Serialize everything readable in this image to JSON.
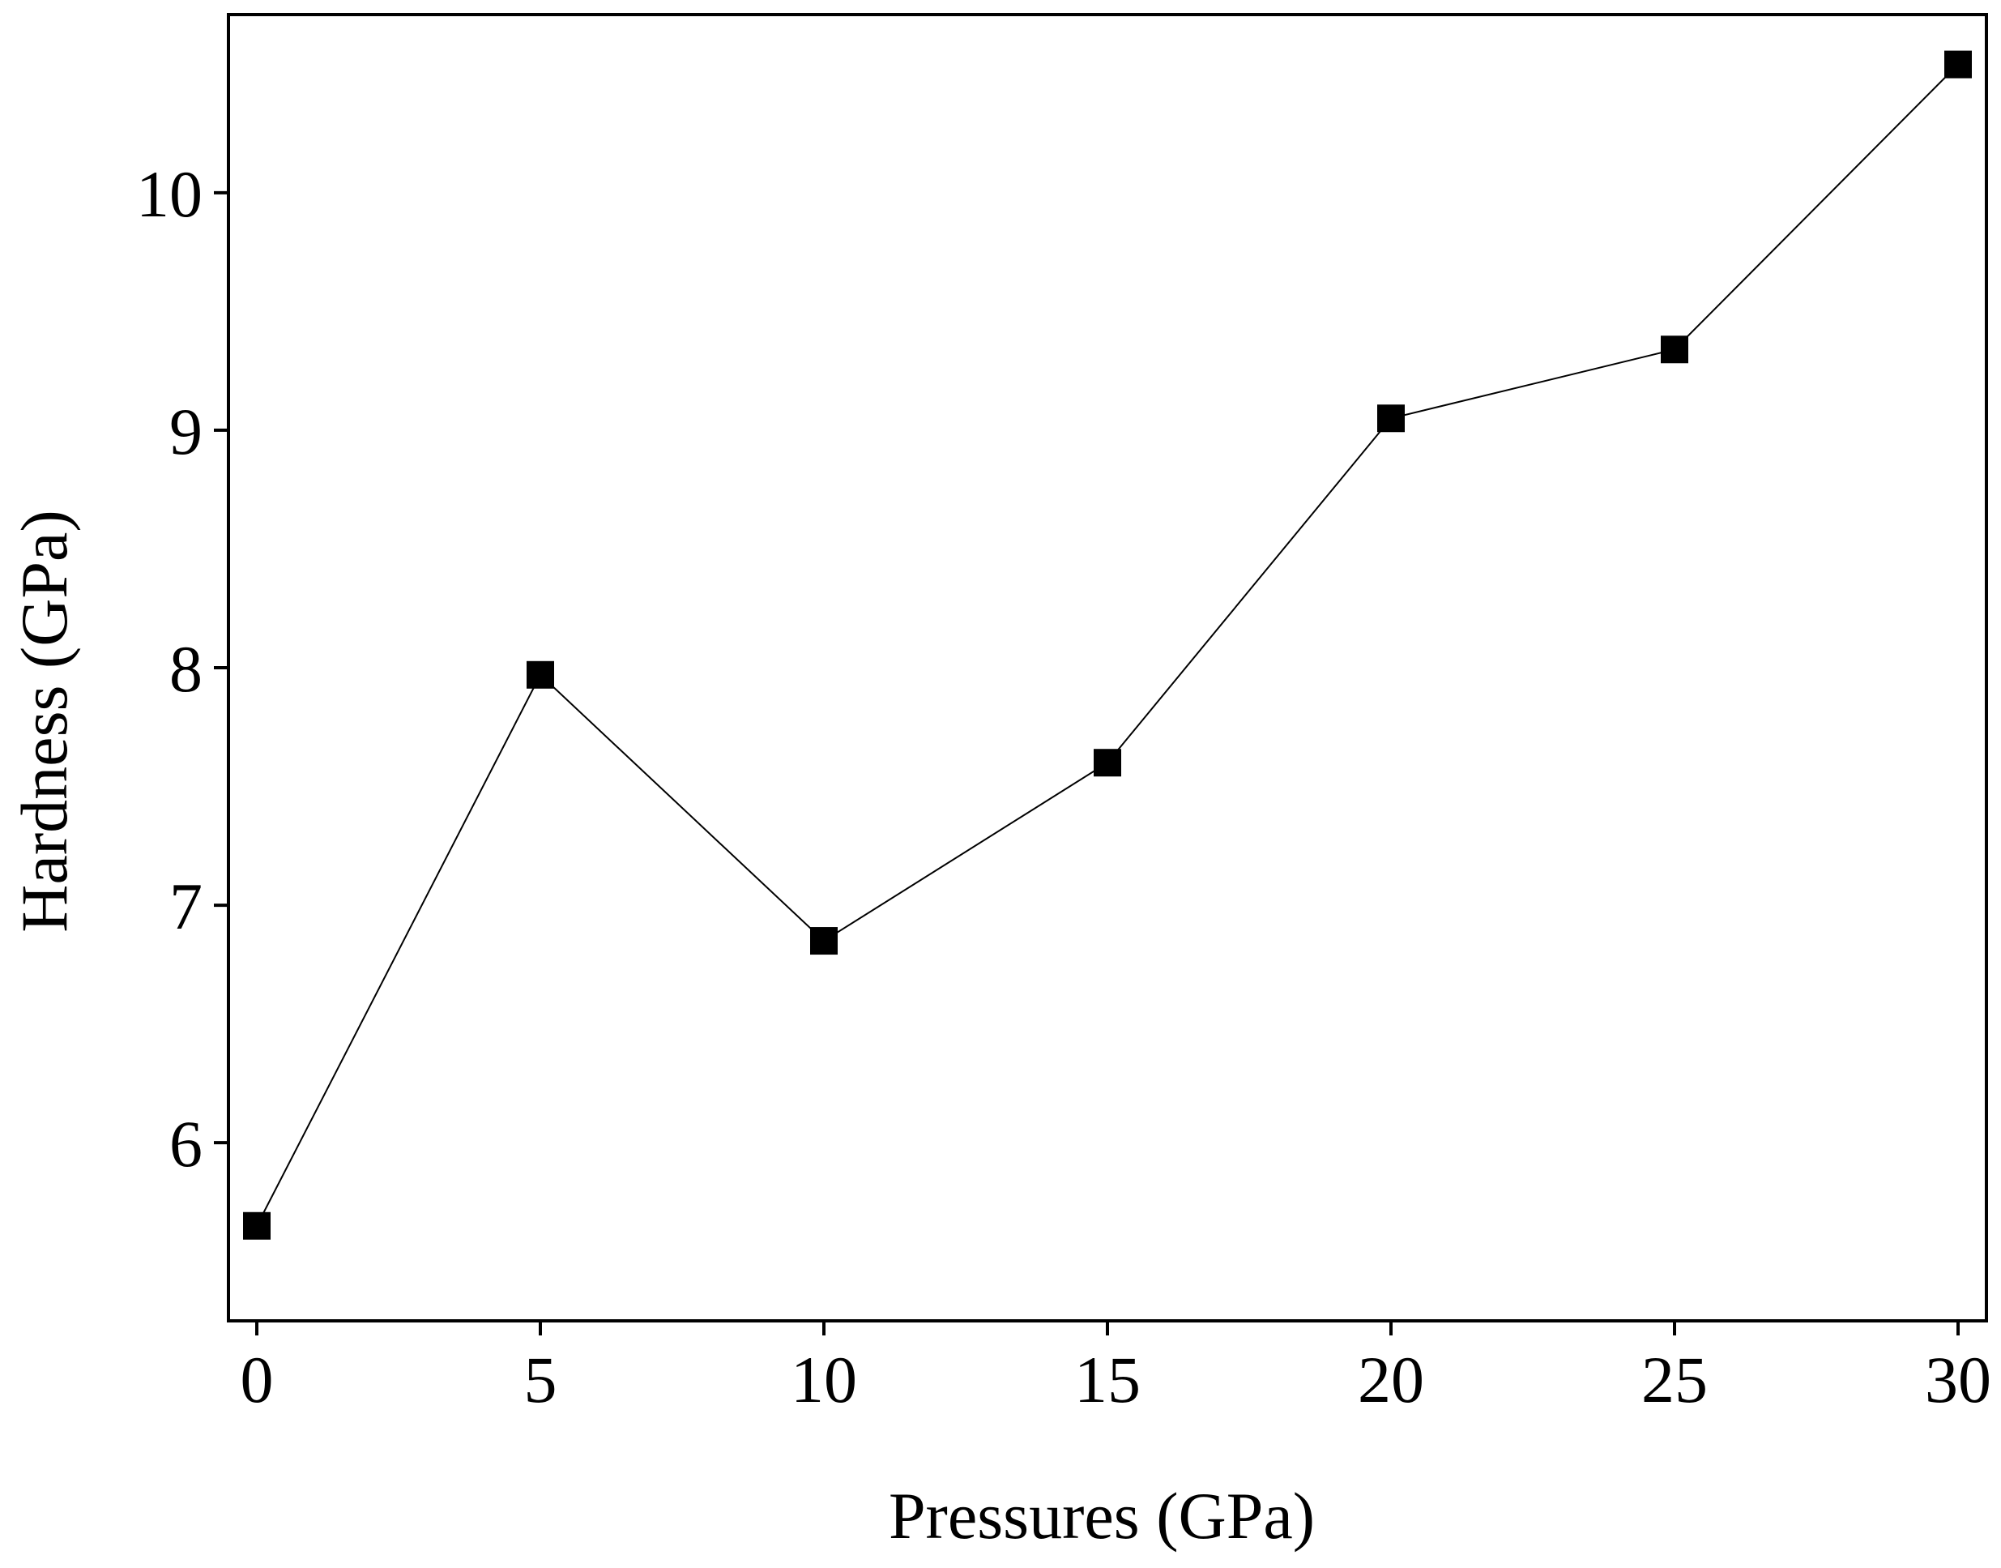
{
  "chart_data": {
    "type": "line",
    "title": "",
    "xlabel": "Pressures (GPa)",
    "ylabel": "Hardness (GPa)",
    "xlim": [
      -0.5,
      30.5
    ],
    "ylim": [
      5.25,
      10.75
    ],
    "xticks": [
      0,
      5,
      10,
      15,
      20,
      25,
      30
    ],
    "yticks": [
      6,
      7,
      8,
      9,
      10
    ],
    "xtick_labels": [
      "0",
      "5",
      "10",
      "15",
      "20",
      "25",
      "30"
    ],
    "ytick_labels": [
      "6",
      "7",
      "8",
      "9",
      "10"
    ],
    "grid": false,
    "legend": "none",
    "series": [
      {
        "name": "Hardness",
        "marker": "square",
        "color": "#000000",
        "x": [
          0,
          5,
          10,
          15,
          20,
          25,
          30
        ],
        "y": [
          5.65,
          7.97,
          6.85,
          7.6,
          9.05,
          9.34,
          10.54
        ]
      }
    ]
  }
}
